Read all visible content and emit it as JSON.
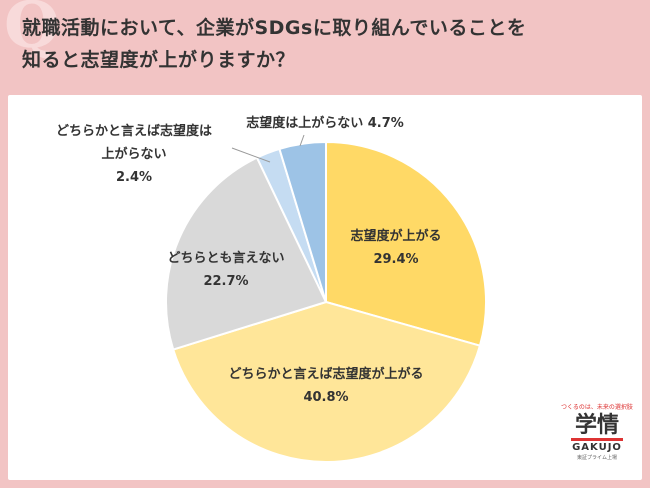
{
  "header": {
    "line1": "就職活動において、企業がSDGsに取り組んでいることを",
    "line2": "知ると志望度が上がりますか？"
  },
  "logo": {
    "tagline": "つくるのは、未来の選択肢",
    "name": "学情",
    "name_en": "GAKUJO",
    "sub": "東証プライム上場"
  },
  "chart_data": {
    "type": "pie",
    "start_angle_deg": 0,
    "direction": "clockwise",
    "slices": [
      {
        "label": "志望度が上がる",
        "value": 29.4,
        "value_label": "29.4%",
        "color": "#ffd966"
      },
      {
        "label": "どちらかと言えば志望度が上がる",
        "value": 40.8,
        "value_label": "40.8%",
        "color": "#ffe699"
      },
      {
        "label": "どちらとも言えない",
        "value": 22.7,
        "value_label": "22.7%",
        "color": "#d9d9d9"
      },
      {
        "label": "どちらかと言えば志望度は上がらない",
        "label_lines": [
          "どちらかと言えば志望度は",
          "上がらない"
        ],
        "value": 2.4,
        "value_label": "2.4%",
        "color": "#c5dcf2"
      },
      {
        "label": "志望度は上がらない",
        "value": 4.7,
        "value_label": "志望度は上がらない 4.7%",
        "color": "#9dc3e6"
      }
    ]
  }
}
